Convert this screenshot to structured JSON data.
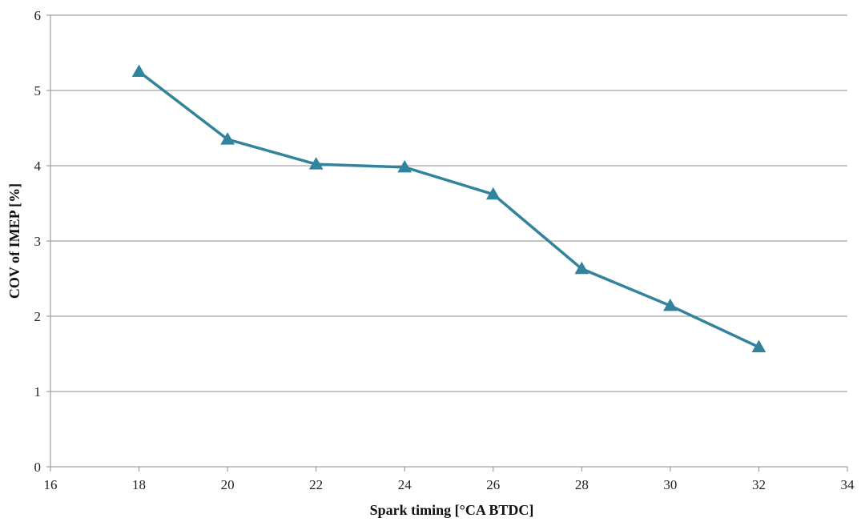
{
  "chart_data": {
    "type": "line",
    "title": "",
    "xlabel": "Spark timing [°CA BTDC]",
    "ylabel": "COV of IMEP [%]",
    "xlim": [
      16,
      34
    ],
    "ylim": [
      0,
      6
    ],
    "xticks": [
      16,
      18,
      20,
      22,
      24,
      26,
      28,
      30,
      32,
      34
    ],
    "yticks": [
      0,
      1,
      2,
      3,
      4,
      5,
      6
    ],
    "grid": "horizontal",
    "legend": "none",
    "series": [
      {
        "marker": "triangle",
        "color": "#31849B",
        "x": [
          18,
          20,
          22,
          24,
          26,
          28,
          30,
          32
        ],
        "y": [
          5.25,
          4.35,
          4.02,
          3.98,
          3.62,
          2.63,
          2.14,
          1.59
        ]
      }
    ]
  }
}
